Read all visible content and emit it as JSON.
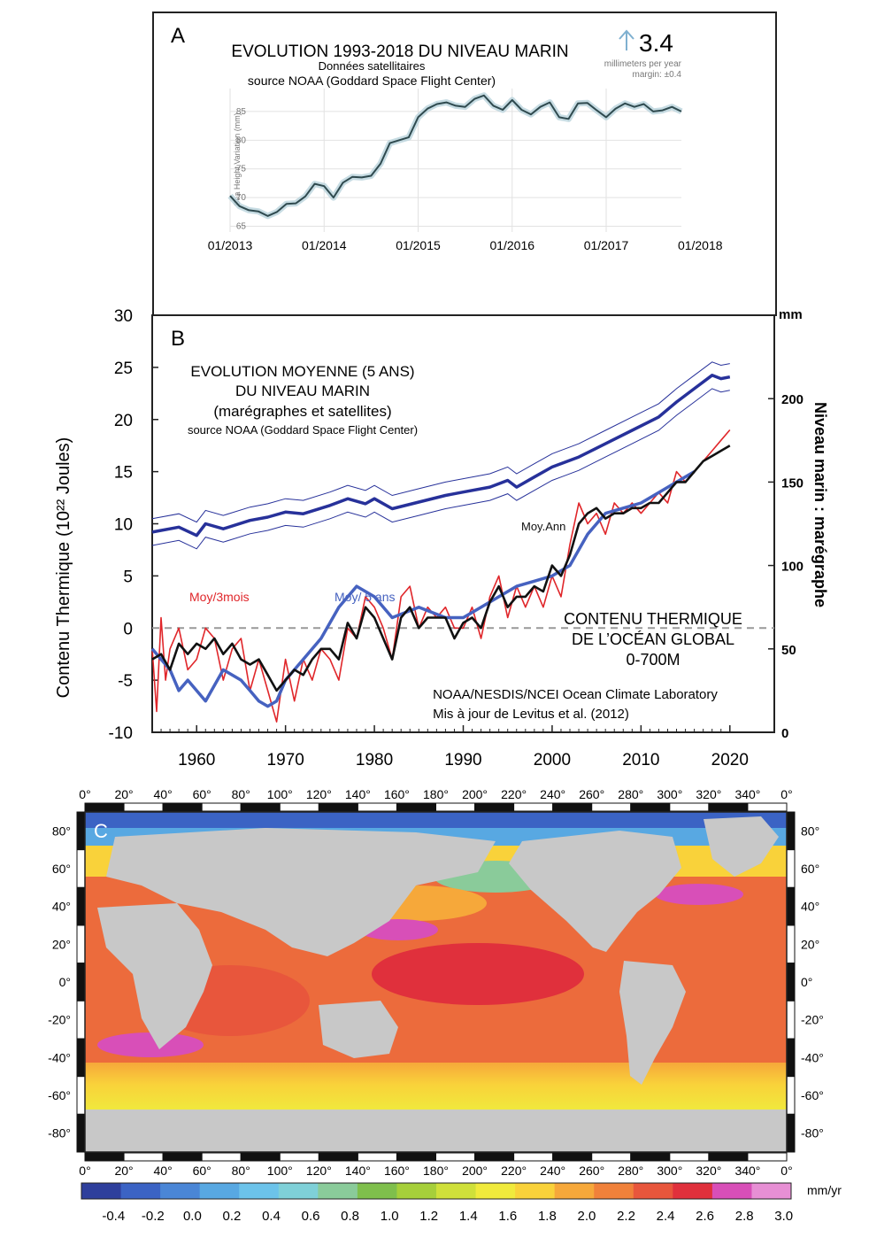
{
  "colors": {
    "panelA_line": "#2f4a4f",
    "panelA_band": "#b9d3dc",
    "arrow": "#7fb0d0",
    "sea_level": "#27319a",
    "heat_3mois": "#e0262a",
    "heat_annual": "#111111",
    "heat_5ans": "#4662c0",
    "land": "#c8c8c8"
  },
  "chart_data": [
    {
      "type": "line",
      "panel_label": "A",
      "title": "EVOLUTION 1993-2018 DU NIVEAU MARIN",
      "subtitle": "Données satellitaires",
      "source": "source NOAA (Goddard Space Flight Center)",
      "rate_value": "3.4",
      "rate_unit": "millimeters per year",
      "rate_margin": "margin: ±0.4",
      "ylabel": "Sea Height Variation (mm)",
      "xlabel": "",
      "ylim": [
        64,
        89
      ],
      "xlim": [
        2013.0,
        2017.8
      ],
      "x_ticks": [
        2013,
        2014,
        2015,
        2016,
        2017,
        2018
      ],
      "x_tick_labels": [
        "01/2013",
        "01/2014",
        "01/2015",
        "01/2016",
        "01/2017",
        "01/2018"
      ],
      "y_ticks": [
        65,
        70,
        75,
        80,
        85
      ],
      "grid": true,
      "series": [
        {
          "x": [
            2013.0,
            2013.1,
            2013.2,
            2013.3,
            2013.4,
            2013.5,
            2013.6,
            2013.7,
            2013.8,
            2013.9,
            2014.0,
            2014.1,
            2014.2,
            2014.3,
            2014.4,
            2014.5,
            2014.6,
            2014.7,
            2014.8,
            2014.9,
            2015.0,
            2015.1,
            2015.2,
            2015.3,
            2015.4,
            2015.5,
            2015.6,
            2015.7,
            2015.8,
            2015.9,
            2016.0,
            2016.1,
            2016.2,
            2016.3,
            2016.4,
            2016.5,
            2016.6,
            2016.7,
            2016.8,
            2016.9,
            2017.0,
            2017.1,
            2017.2,
            2017.3,
            2017.4,
            2017.5,
            2017.6,
            2017.7,
            2017.8
          ],
          "values": [
            70.3,
            68.5,
            67.8,
            67.6,
            66.8,
            67.5,
            68.9,
            69.0,
            70.2,
            72.4,
            72.0,
            70.0,
            72.6,
            73.6,
            73.5,
            73.8,
            75.9,
            79.5,
            80.0,
            80.5,
            84.0,
            85.5,
            86.3,
            86.6,
            86.0,
            85.8,
            87.2,
            87.8,
            86.0,
            85.3,
            87.0,
            85.3,
            84.5,
            85.8,
            86.6,
            84.0,
            83.7,
            86.4,
            86.5,
            85.2,
            84.0,
            85.5,
            86.4,
            85.8,
            86.3,
            85.0,
            85.2,
            85.8,
            85.0
          ]
        }
      ]
    },
    {
      "type": "line",
      "panel_label": "B",
      "title_lines": [
        "EVOLUTION MOYENNE (5 ANS)",
        "DU NIVEAU MARIN",
        "(marégraphes et satellites)"
      ],
      "source": "source NOAA (Goddard Space Flight Center)",
      "ylabel": "Contenu Thermique",
      "ylabel_unit": "(10²² Joules)",
      "y2label": "Niveau marin :  marégraphe",
      "y2unit": "mm",
      "heat_title_lines": [
        "CONTENU THERMIQUE",
        "DE L’OCÉAN GLOBAL",
        "0-700M"
      ],
      "credit_line1": "NOAA/NESDIS/NCEI Ocean Climate Laboratory",
      "credit_line2": "Mis à jour de  Levitus et al. (2012)",
      "xlim": [
        1955,
        2025
      ],
      "ylim": [
        -10,
        30
      ],
      "y2lim": [
        0,
        250
      ],
      "x_ticks": [
        1960,
        1970,
        1980,
        1990,
        2000,
        2010,
        2020
      ],
      "y_ticks": [
        -10,
        -5,
        0,
        5,
        10,
        15,
        20,
        25,
        30
      ],
      "y2_ticks": [
        0,
        50,
        100,
        150,
        200
      ],
      "labels": {
        "heat_3mois": "Moy/3mois",
        "heat_5ans": "Moy/ 5 ans",
        "heat_annual": "Moy.Ann"
      },
      "series": [
        {
          "axis": "right",
          "x": [
            1955,
            1958,
            1960,
            1961,
            1963,
            1966,
            1968,
            1970,
            1972,
            1975,
            1977,
            1979,
            1980,
            1982,
            1985,
            1988,
            1990,
            1993,
            1995,
            1996,
            1998,
            2000,
            2003,
            2006,
            2009,
            2012,
            2014,
            2016,
            2018,
            2019,
            2020
          ],
          "values": [
            120,
            123,
            118,
            125,
            122,
            127,
            129,
            132,
            131,
            136,
            140,
            137,
            140,
            134,
            138,
            142,
            144,
            147,
            151,
            147,
            153,
            159,
            165,
            173,
            181,
            189,
            198,
            206,
            214,
            212,
            213
          ]
        },
        {
          "name": "Moy/3mois",
          "x": [
            1955,
            1955.5,
            1956,
            1956.5,
            1957,
            1958,
            1959,
            1960,
            1961,
            1962,
            1963,
            1964,
            1965,
            1966,
            1967,
            1968,
            1969,
            1970,
            1971,
            1972,
            1973,
            1974,
            1975,
            1976,
            1977,
            1978,
            1979,
            1980,
            1981,
            1982,
            1983,
            1984,
            1985,
            1986,
            1987,
            1988,
            1989,
            1990,
            1991,
            1992,
            1993,
            1994,
            1995,
            1996,
            1997,
            1998,
            1999,
            2000,
            2001,
            2002,
            2003,
            2004,
            2005,
            2006,
            2007,
            2008,
            2009,
            2010,
            2011,
            2012,
            2013,
            2014,
            2015,
            2016,
            2017,
            2018,
            2019,
            2020
          ],
          "values": [
            -2,
            -8,
            1,
            -5,
            -2,
            0,
            -4,
            -3,
            0,
            -1,
            -5,
            -2,
            -1,
            -6,
            -3,
            -6,
            -9,
            -3,
            -7,
            -3,
            -5,
            -2,
            -3,
            -5,
            0,
            -1,
            3,
            2,
            0,
            -3,
            3,
            4,
            0,
            2,
            1,
            2,
            0,
            0,
            2,
            -1,
            3,
            5,
            1,
            4,
            2,
            4,
            2,
            5,
            3,
            8,
            12,
            10,
            11,
            9,
            12,
            11,
            12,
            11,
            12,
            13,
            12,
            15,
            14,
            15,
            16,
            17,
            18,
            19
          ]
        },
        {
          "name": "Moy.Ann",
          "x": [
            1955,
            1956,
            1957,
            1958,
            1959,
            1960,
            1961,
            1962,
            1963,
            1964,
            1965,
            1966,
            1967,
            1968,
            1969,
            1970,
            1971,
            1972,
            1973,
            1974,
            1975,
            1976,
            1977,
            1978,
            1979,
            1980,
            1981,
            1982,
            1983,
            1984,
            1985,
            1986,
            1987,
            1988,
            1989,
            1990,
            1991,
            1992,
            1993,
            1994,
            1995,
            1996,
            1997,
            1998,
            1999,
            2000,
            2001,
            2002,
            2003,
            2004,
            2005,
            2006,
            2007,
            2008,
            2009,
            2010,
            2011,
            2012,
            2013,
            2014,
            2015,
            2016,
            2017,
            2018,
            2019,
            2020
          ],
          "values": [
            -3,
            -2.5,
            -4,
            -1.5,
            -2.5,
            -1.5,
            -2,
            -1,
            -2.5,
            -1.5,
            -3,
            -3.5,
            -3,
            -4.5,
            -6,
            -5,
            -4,
            -4.5,
            -3,
            -2,
            -2,
            -3,
            0.5,
            -1,
            2,
            1,
            -1,
            -3,
            1,
            2,
            0,
            1,
            1,
            1,
            -1,
            0.5,
            1,
            0,
            2.5,
            4,
            2,
            3,
            3,
            4,
            3.5,
            6,
            5,
            7,
            10,
            11,
            11.5,
            10.5,
            11,
            11,
            11.5,
            11.5,
            12,
            12,
            13,
            14,
            14,
            15,
            16,
            16.5,
            17,
            17.5
          ]
        },
        {
          "name": "Moy/ 5 ans",
          "x": [
            1955,
            1957,
            1958,
            1959,
            1961,
            1963,
            1965,
            1966,
            1967,
            1968,
            1969,
            1970,
            1972,
            1974,
            1976,
            1978,
            1980,
            1982,
            1985,
            1988,
            1990,
            1992,
            1994,
            1996,
            1998,
            2000,
            2002,
            2004,
            2006,
            2008,
            2010,
            2012,
            2014,
            2016
          ],
          "values": [
            -2,
            -4,
            -6,
            -5,
            -7,
            -4,
            -5,
            -6,
            -7,
            -7.5,
            -7,
            -5,
            -3,
            -1,
            2,
            4,
            3,
            1,
            2,
            1,
            1,
            2,
            3,
            4,
            4.5,
            5,
            6,
            9,
            11,
            11.5,
            12,
            13,
            14,
            15
          ]
        }
      ]
    },
    {
      "type": "heatmap",
      "panel_label": "C",
      "xlabel": "",
      "x_tick_labels": [
        "0°",
        "20°",
        "40°",
        "60°",
        "80°",
        "100°",
        "120°",
        "140°",
        "160°",
        "180°",
        "200°",
        "220°",
        "240°",
        "260°",
        "280°",
        "300°",
        "320°",
        "340°",
        "0°"
      ],
      "y_tick_labels": [
        "80°",
        "60°",
        "40°",
        "20°",
        "0°",
        "-20°",
        "-40°",
        "-60°",
        "-80°"
      ],
      "y_ticks": [
        80,
        60,
        40,
        20,
        0,
        -20,
        -40,
        -60,
        -80
      ],
      "colorbar_unit": "mm/yr",
      "colorbar_ticks": [
        "-0.4",
        "-0.2",
        "0.0",
        "0.2",
        "0.4",
        "0.6",
        "0.8",
        "1.0",
        "1.2",
        "1.4",
        "1.6",
        "1.8",
        "2.0",
        "2.2",
        "2.4",
        "2.6",
        "2.8",
        "3.0"
      ],
      "colorbar_colors": [
        "#2e3f9c",
        "#3b63c4",
        "#4a86d6",
        "#58a8e2",
        "#6cc3ea",
        "#7fd0d8",
        "#8acb9a",
        "#7fbf4c",
        "#a6cf3a",
        "#cfe03a",
        "#f0ea3c",
        "#f9d23a",
        "#f6a83a",
        "#f0813a",
        "#e8563c",
        "#e0303c",
        "#d84fb8",
        "#e78fd4"
      ]
    }
  ]
}
